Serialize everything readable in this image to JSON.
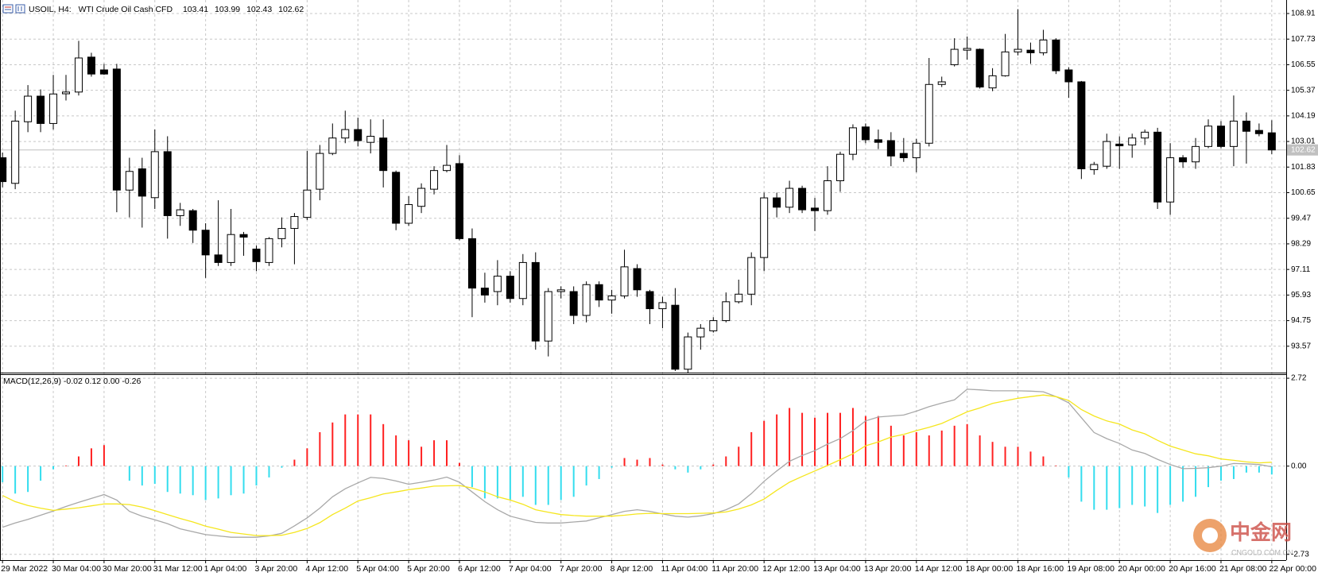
{
  "chart_data": [
    {
      "type": "candlestick",
      "title": "USOIL, H4:",
      "subtitle": "WTI Crude Oil Cash CFD",
      "categories": [
        "29 Mar 2022",
        null,
        null,
        null,
        "30 Mar 04:00",
        null,
        null,
        null,
        "30 Mar 20:00",
        null,
        null,
        null,
        "31 Mar 12:00",
        null,
        null,
        null,
        "1 Apr 04:00",
        null,
        null,
        null,
        "3 Apr 20:00",
        null,
        null,
        null,
        "4 Apr 12:00",
        null,
        null,
        null,
        "5 Apr 04:00",
        null,
        null,
        null,
        "5 Apr 20:00",
        null,
        null,
        null,
        "6 Apr 12:00",
        null,
        null,
        null,
        "7 Apr 04:00",
        null,
        null,
        null,
        "7 Apr 20:00",
        null,
        null,
        null,
        "8 Apr 12:00",
        null,
        null,
        null,
        "11 Apr 04:00",
        null,
        null,
        null,
        "11 Apr 20:00",
        null,
        null,
        null,
        "12 Apr 12:00",
        null,
        null,
        null,
        "13 Apr 04:00",
        null,
        null,
        null,
        "13 Apr 20:00",
        null,
        null,
        null,
        "14 Apr 12:00",
        null,
        null,
        null,
        "18 Apr 00:00",
        null,
        null,
        null,
        "18 Apr 16:00",
        null,
        null,
        null,
        "19 Apr 08:00",
        null,
        null,
        null,
        "20 Apr 00:00",
        null,
        null,
        null,
        "20 Apr 16:00",
        null,
        null,
        null,
        "21 Apr 08:00",
        null,
        null,
        null,
        "22 Apr 00:00"
      ],
      "open": [
        102.26,
        101.08,
        103.92,
        105.1,
        103.84,
        105.21,
        105.29,
        106.9,
        106.31,
        106.35,
        100.77,
        101.75,
        100.42,
        102.54,
        99.59,
        99.82,
        98.92,
        97.78,
        97.43,
        98.72,
        98.05,
        97.43,
        98.53,
        99.0,
        99.51,
        100.81,
        102.46,
        103.17,
        103.56,
        102.97,
        103.17,
        101.59,
        99.24,
        100.02,
        100.81,
        101.67,
        101.99,
        98.53,
        96.25,
        96.09,
        96.8,
        95.77,
        97.43,
        93.81,
        96.09,
        96.09,
        94.99,
        96.41,
        95.7,
        95.89,
        97.15,
        96.09,
        95.3,
        95.46,
        92.51,
        94.0,
        94.28,
        94.75,
        95.62,
        95.97,
        97.66,
        100.41,
        99.98,
        100.85,
        99.94,
        99.82,
        101.2,
        102.42,
        103.68,
        103.09,
        103.05,
        102.46,
        102.26,
        102.93,
        105.64,
        106.55,
        107.22,
        107.26,
        105.48,
        106.04,
        107.14,
        107.22,
        107.1,
        107.69,
        106.31,
        105.76,
        101.71,
        101.87,
        102.89,
        102.85,
        103.17,
        103.44,
        100.22,
        102.26,
        102.07,
        102.78,
        103.72,
        102.78,
        103.95,
        103.52,
        103.41
      ],
      "high": [
        102.5,
        104.43,
        105.61,
        105.41,
        106.08,
        106.08,
        107.65,
        107.1,
        106.59,
        106.59,
        102.26,
        102.26,
        103.56,
        103.25,
        100.18,
        99.9,
        99.24,
        100.3,
        99.9,
        98.84,
        98.21,
        98.6,
        99.51,
        99.71,
        102.58,
        102.85,
        103.84,
        104.43,
        104.11,
        104.03,
        104.03,
        101.67,
        100.49,
        101.08,
        101.87,
        102.85,
        102.38,
        99.0,
        96.96,
        97.54,
        97.03,
        97.82,
        97.9,
        96.25,
        96.33,
        96.33,
        96.56,
        96.56,
        96.17,
        98.02,
        97.35,
        96.17,
        95.85,
        96.25,
        94.2,
        94.59,
        94.91,
        96.05,
        96.64,
        97.9,
        100.65,
        100.65,
        101.2,
        100.97,
        100.41,
        101.87,
        102.54,
        103.8,
        103.84,
        103.56,
        103.44,
        103.17,
        103.13,
        106.86,
        106.0,
        107.77,
        107.85,
        107.3,
        106.39,
        107.97,
        109.11,
        107.57,
        108.16,
        107.77,
        106.43,
        105.8,
        102.07,
        103.37,
        103.25,
        103.37,
        103.56,
        103.64,
        102.93,
        102.38,
        103.17,
        104.03,
        103.95,
        105.13,
        104.35,
        103.84,
        103.99
      ],
      "low": [
        100.9,
        100.81,
        103.44,
        103.44,
        103.56,
        104.9,
        105.13,
        106.0,
        106.08,
        99.75,
        99.51,
        99.04,
        99.9,
        98.53,
        99.12,
        98.33,
        96.72,
        97.27,
        97.27,
        97.74,
        97.03,
        97.27,
        98.13,
        97.35,
        99.39,
        100.3,
        102.38,
        102.93,
        102.78,
        102.46,
        100.89,
        98.92,
        99.12,
        99.71,
        100.57,
        101.59,
        98.45,
        94.91,
        95.58,
        95.46,
        95.58,
        95.46,
        93.41,
        93.1,
        95.77,
        94.59,
        94.67,
        95.38,
        95.07,
        95.77,
        95.85,
        94.59,
        94.4,
        92.43,
        92.32,
        93.41,
        94.2,
        94.67,
        95.54,
        95.46,
        97.03,
        99.51,
        99.71,
        99.71,
        98.88,
        99.63,
        100.69,
        102.15,
        102.93,
        102.66,
        101.87,
        102.07,
        101.59,
        102.78,
        105.52,
        106.47,
        106.78,
        105.45,
        105.33,
        106.0,
        106.98,
        106.59,
        106.98,
        106.12,
        105.02,
        101.28,
        101.48,
        101.75,
        101.75,
        102.26,
        102.85,
        99.9,
        99.63,
        101.79,
        101.75,
        102.7,
        102.7,
        101.87,
        101.99,
        103.25,
        102.43
      ],
      "close": [
        101.16,
        103.95,
        105.1,
        103.84,
        105.2,
        105.29,
        106.86,
        106.12,
        106.12,
        100.77,
        101.63,
        100.49,
        102.54,
        99.59,
        99.86,
        98.92,
        97.78,
        97.43,
        98.72,
        98.6,
        97.47,
        98.53,
        99.0,
        99.55,
        100.77,
        102.46,
        103.17,
        103.56,
        103.05,
        103.25,
        101.67,
        99.24,
        100.1,
        100.85,
        101.67,
        101.91,
        98.53,
        96.25,
        95.93,
        96.8,
        95.77,
        97.43,
        93.81,
        96.09,
        96.17,
        94.99,
        96.41,
        95.7,
        95.89,
        97.23,
        96.17,
        95.3,
        95.58,
        92.51,
        94.0,
        94.4,
        94.75,
        95.62,
        95.97,
        97.66,
        100.41,
        99.98,
        100.85,
        99.86,
        99.82,
        101.2,
        102.42,
        103.64,
        103.09,
        102.97,
        102.34,
        102.26,
        102.93,
        105.64,
        105.76,
        107.26,
        107.3,
        105.52,
        106.04,
        107.14,
        107.26,
        107.1,
        107.69,
        106.27,
        105.76,
        101.75,
        101.95,
        103.01,
        102.81,
        103.17,
        103.44,
        100.22,
        102.26,
        102.07,
        102.78,
        103.72,
        102.78,
        103.95,
        103.48,
        103.37,
        102.62
      ],
      "up_color": "#ffffff",
      "down_color": "#000000",
      "wick_color": "#000000",
      "price_line_color": "#c0c0c0",
      "ylim": [
        92.39,
        109.46
      ],
      "yticks": [
        108.91,
        107.73,
        106.55,
        105.37,
        104.19,
        103.01,
        101.83,
        100.65,
        99.47,
        98.29,
        97.11,
        95.93,
        94.75,
        93.57
      ],
      "grid": true
    },
    {
      "type": "macd",
      "title": "MACD(12,26,9) -0.02 0.12 0.00 -0.26",
      "histogram": {
        "up_color": "#ff2020",
        "down_color": "#33ddee",
        "values": [
          -0.5,
          -0.85,
          -0.8,
          -0.45,
          -0.1,
          0.02,
          0.3,
          0.55,
          0.65,
          0,
          -0.45,
          -0.6,
          -0.55,
          -0.8,
          -0.85,
          -0.9,
          -1.05,
          -1.0,
          -0.9,
          -0.85,
          -0.6,
          -0.35,
          -0.05,
          0.2,
          0.55,
          1.05,
          1.35,
          1.6,
          1.6,
          1.6,
          1.3,
          0.95,
          0.8,
          0.6,
          0.8,
          0.8,
          0.1,
          -0.65,
          -1.0,
          -1.0,
          -1.05,
          -0.95,
          -1.2,
          -1.2,
          -1.05,
          -0.95,
          -0.6,
          -0.4,
          -0.05,
          0.25,
          0.2,
          0.25,
          0.05,
          -0.1,
          -0.2,
          -0.1,
          0.05,
          0.3,
          0.6,
          1.05,
          1.4,
          1.6,
          1.8,
          1.65,
          1.5,
          1.65,
          1.65,
          1.8,
          1.55,
          1.55,
          1.25,
          0.95,
          1.05,
          0.95,
          1.1,
          1.25,
          1.3,
          0.95,
          0.75,
          0.6,
          0.6,
          0.45,
          0.3,
          0.02,
          -0.35,
          -1.1,
          -1.35,
          -1.35,
          -1.3,
          -1.2,
          -1.25,
          -1.45,
          -1.2,
          -1.1,
          -0.95,
          -0.65,
          -0.45,
          -0.4,
          -0.2,
          -0.2,
          -0.26
        ]
      },
      "main": {
        "color": "#a8a8a8",
        "values": [
          -1.89,
          -1.76,
          -1.65,
          -1.52,
          -1.39,
          -1.25,
          -1.12,
          -1.0,
          -0.88,
          -1.05,
          -1.4,
          -1.55,
          -1.66,
          -1.78,
          -1.94,
          -2.03,
          -2.12,
          -2.16,
          -2.2,
          -2.2,
          -2.2,
          -2.16,
          -2.08,
          -1.85,
          -1.6,
          -1.3,
          -0.95,
          -0.7,
          -0.52,
          -0.35,
          -0.38,
          -0.46,
          -0.56,
          -0.5,
          -0.43,
          -0.34,
          -0.5,
          -0.8,
          -1.1,
          -1.35,
          -1.55,
          -1.65,
          -1.74,
          -1.76,
          -1.76,
          -1.73,
          -1.7,
          -1.6,
          -1.5,
          -1.4,
          -1.35,
          -1.4,
          -1.48,
          -1.55,
          -1.58,
          -1.54,
          -1.47,
          -1.35,
          -1.17,
          -0.85,
          -0.47,
          -0.15,
          0.15,
          0.33,
          0.48,
          0.68,
          0.85,
          1.1,
          1.4,
          1.52,
          1.55,
          1.58,
          1.7,
          1.84,
          1.95,
          2.05,
          2.38,
          2.36,
          2.33,
          2.33,
          2.33,
          2.32,
          2.3,
          2.15,
          1.96,
          1.5,
          1.04,
          0.85,
          0.7,
          0.5,
          0.39,
          0.21,
          0.05,
          -0.08,
          -0.07,
          -0.05,
          0.0,
          0.08,
          0.07,
          0.05,
          -0.02
        ]
      },
      "signal": {
        "color": "#f5e61e",
        "values": [
          -0.91,
          -1.1,
          -1.22,
          -1.3,
          -1.37,
          -1.33,
          -1.29,
          -1.23,
          -1.17,
          -1.17,
          -1.19,
          -1.27,
          -1.38,
          -1.5,
          -1.62,
          -1.73,
          -1.86,
          -1.95,
          -2.05,
          -2.1,
          -2.15,
          -2.15,
          -2.14,
          -2.05,
          -1.93,
          -1.75,
          -1.5,
          -1.3,
          -1.08,
          -0.98,
          -0.86,
          -0.8,
          -0.73,
          -0.68,
          -0.62,
          -0.61,
          -0.6,
          -0.68,
          -0.8,
          -0.95,
          -1.05,
          -1.18,
          -1.35,
          -1.43,
          -1.5,
          -1.53,
          -1.55,
          -1.55,
          -1.55,
          -1.52,
          -1.48,
          -1.46,
          -1.47,
          -1.47,
          -1.47,
          -1.46,
          -1.45,
          -1.42,
          -1.33,
          -1.2,
          -1.02,
          -0.75,
          -0.5,
          -0.32,
          -0.15,
          0.02,
          0.2,
          0.38,
          0.63,
          0.75,
          0.9,
          0.98,
          1.1,
          1.2,
          1.32,
          1.5,
          1.68,
          1.8,
          1.94,
          2.02,
          2.1,
          2.15,
          2.2,
          2.15,
          2.03,
          1.75,
          1.55,
          1.4,
          1.3,
          1.12,
          1.0,
          0.8,
          0.62,
          0.5,
          0.38,
          0.32,
          0.22,
          0.18,
          0.13,
          0.1,
          0.12
        ]
      },
      "ylim": [
        -2.86,
        2.82
      ],
      "yticks": [
        2.72,
        {
          "value": 0,
          "label": "0.00"
        },
        -2.73
      ],
      "grid": true
    }
  ],
  "watermark": {
    "name": "中金网",
    "site": "CNGOLD.COM.CN"
  }
}
